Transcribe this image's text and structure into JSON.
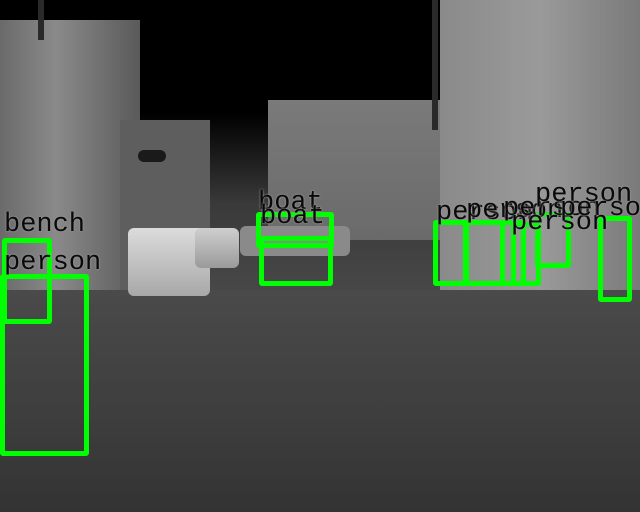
{
  "image": {
    "kind": "thermal-infrared street scene with object detection overlay",
    "box_color": "#00ff00",
    "label_color": "#0a0a0a"
  },
  "detections": [
    {
      "label": "bench"
    },
    {
      "label": "person"
    },
    {
      "label": "boat"
    },
    {
      "label": "boat"
    },
    {
      "label": "person"
    },
    {
      "label": "person"
    },
    {
      "label": "person"
    },
    {
      "label": "person"
    },
    {
      "label": "person"
    },
    {
      "label": "person"
    }
  ]
}
